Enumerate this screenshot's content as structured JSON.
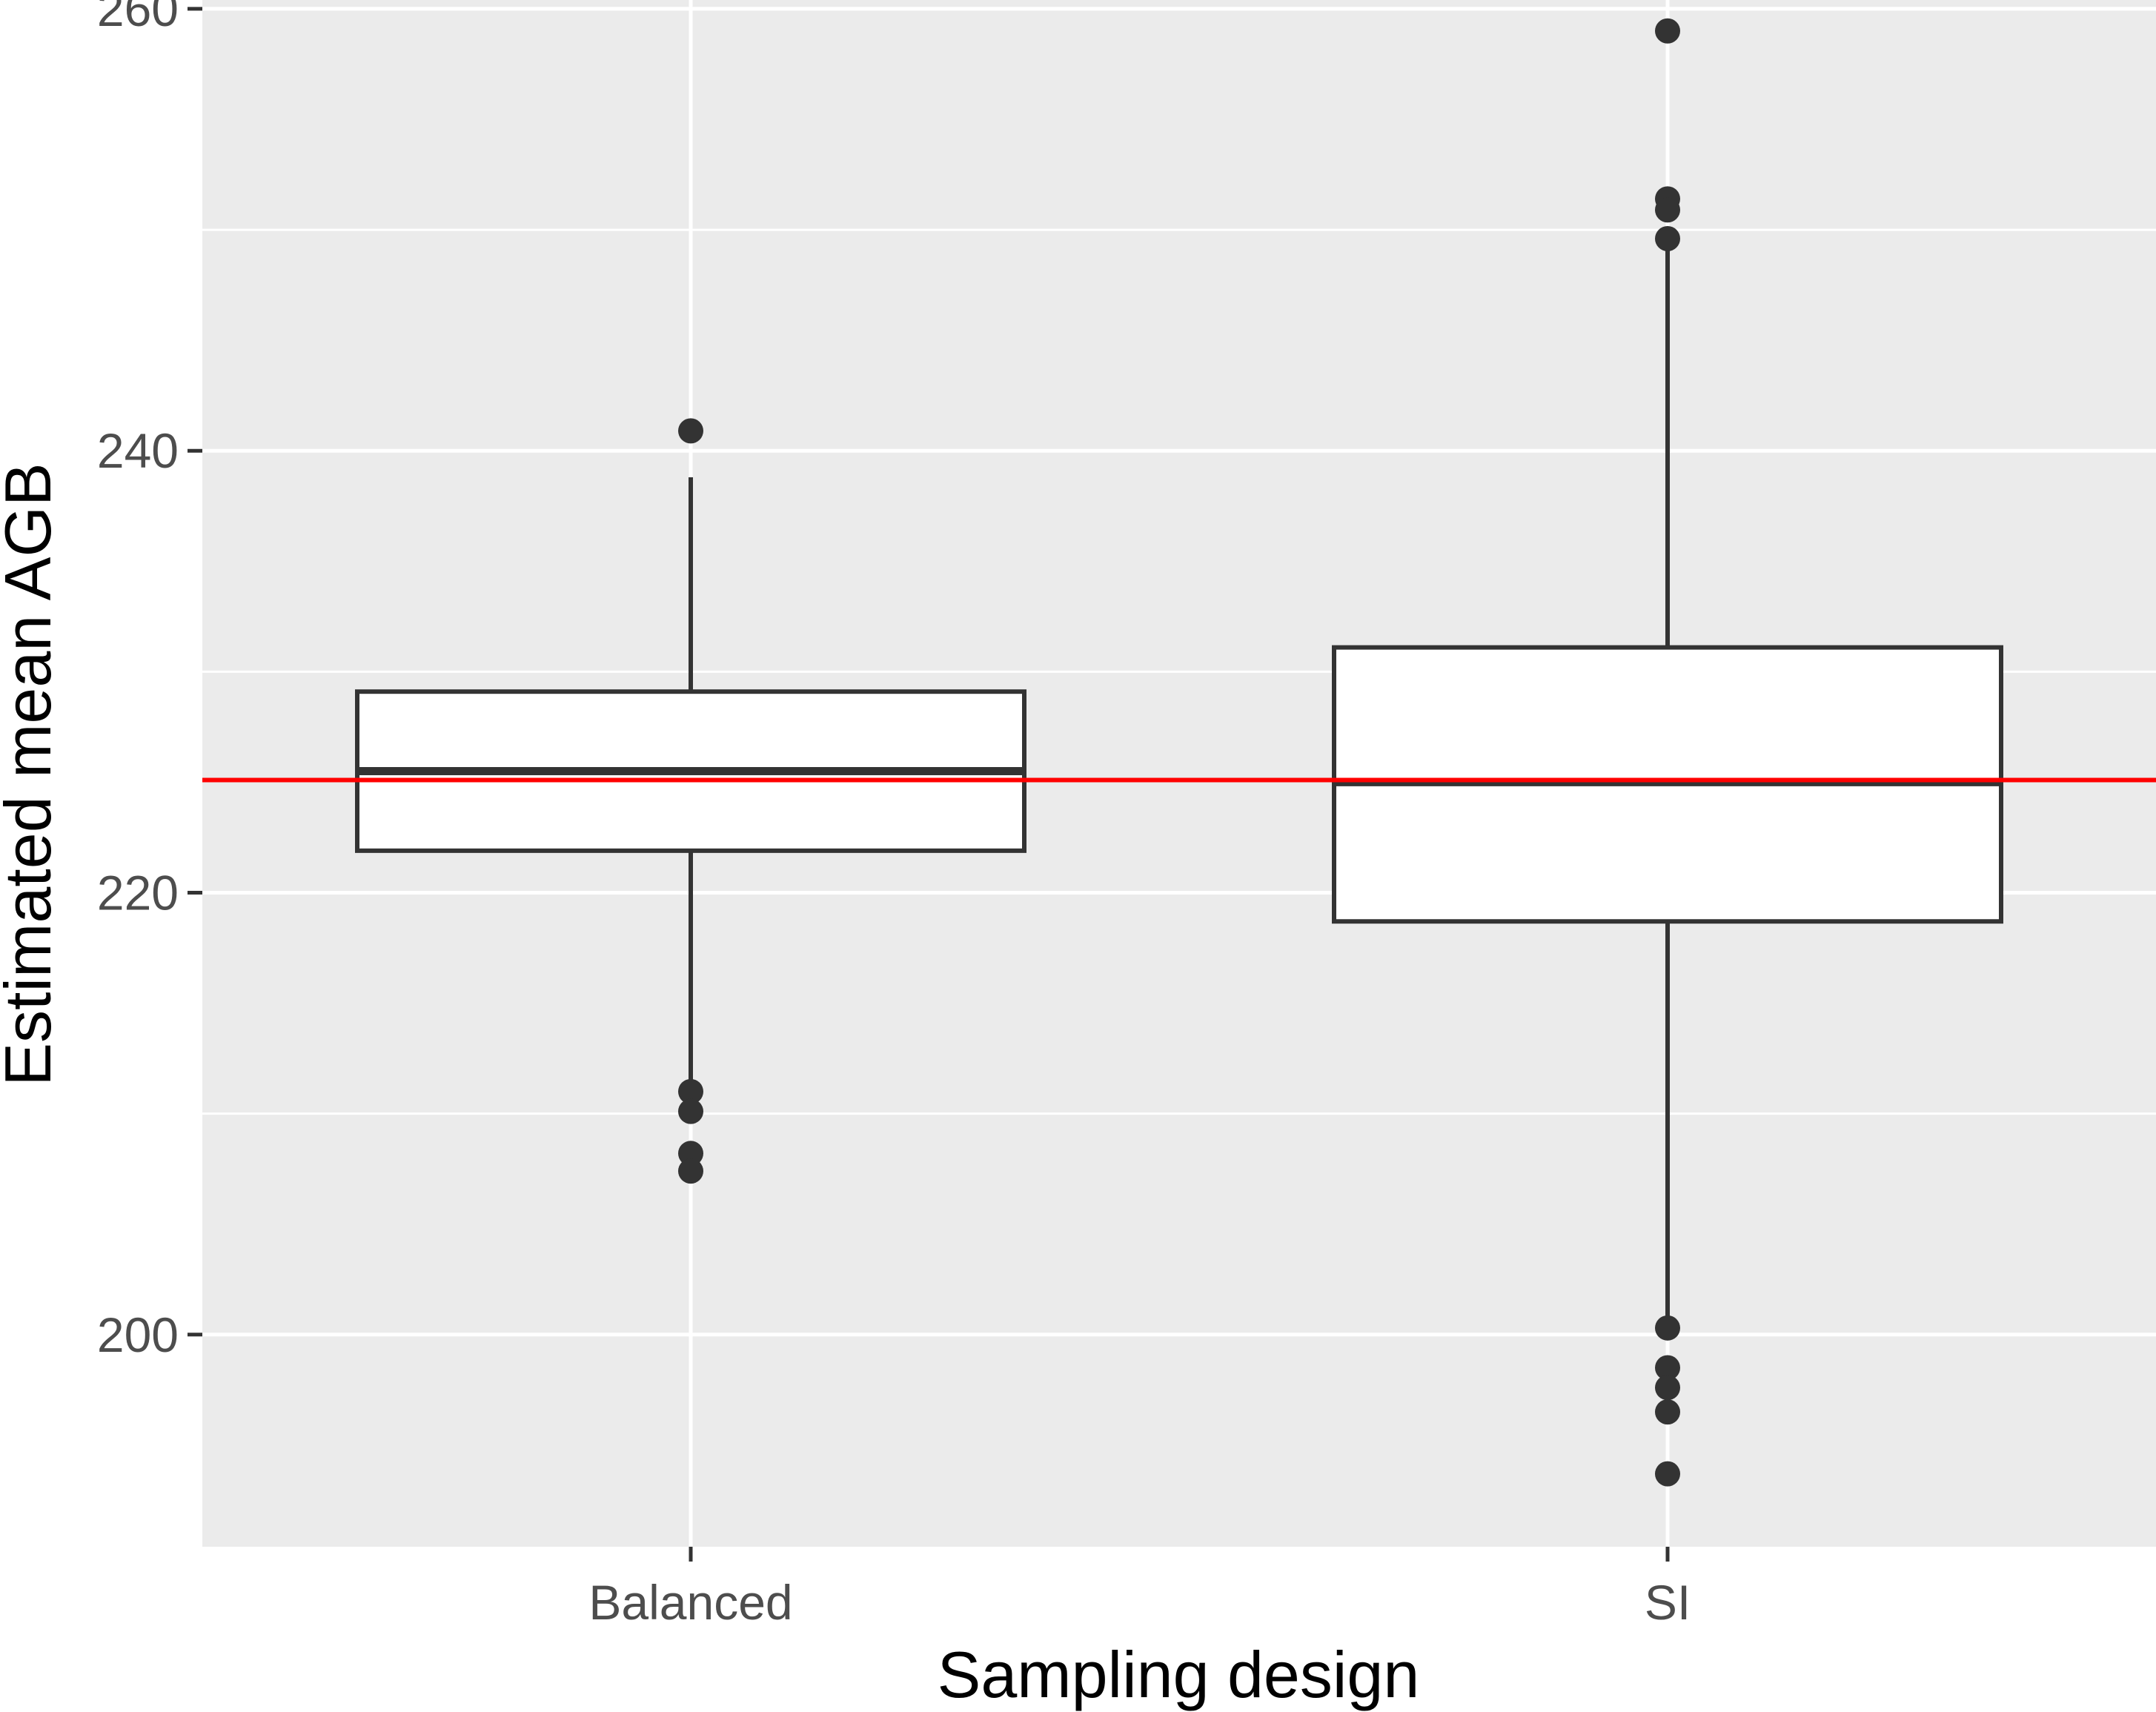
{
  "chart_data": {
    "type": "box",
    "xlabel": "Sampling design",
    "ylabel": "Estimated mean AGB",
    "ylim": [
      190.4,
      260.4
    ],
    "yticks": [
      200,
      220,
      240,
      260
    ],
    "yticks_minor": [
      210,
      230,
      250
    ],
    "categories": [
      "Balanced",
      "SI"
    ],
    "boxes": [
      {
        "category": "Balanced",
        "lower_whisker": 211.0,
        "q1": 221.9,
        "median": 225.5,
        "q3": 229.1,
        "upper_whisker": 238.8,
        "outliers": [
          240.9,
          211.0,
          210.1,
          208.2,
          207.4
        ]
      },
      {
        "category": "SI",
        "lower_whisker": 200.3,
        "q1": 218.7,
        "median": 225.0,
        "q3": 231.1,
        "upper_whisker": 249.6,
        "outliers": [
          259.0,
          251.4,
          250.9,
          249.6,
          200.3,
          198.5,
          197.6,
          196.5,
          193.7
        ]
      }
    ],
    "reference_line": {
      "y": 225.1,
      "color": "#ff0000"
    },
    "colors": {
      "panel_background": "#ebebeb",
      "grid": "#ffffff",
      "box_fill": "#ffffff",
      "box_stroke": "#333333",
      "tick_text": "#4d4d4d"
    },
    "grid": true
  }
}
